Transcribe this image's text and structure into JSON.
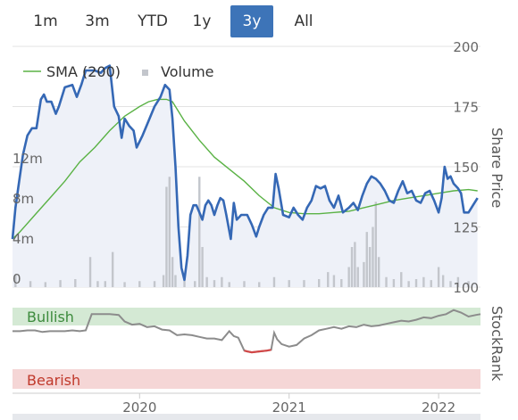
{
  "range_selector": {
    "buttons": [
      "1m",
      "3m",
      "YTD",
      "1y",
      "3y",
      "All"
    ],
    "active": "3y",
    "active_color": "#3d74b8"
  },
  "legend": {
    "sma_label": "SMA (200)",
    "volume_label": "Volume"
  },
  "labels": {
    "share_price_axis": "Share Price",
    "stockrank_axis": "StockRank",
    "bullish": "Bullish",
    "bearish": "Bearish"
  },
  "colors": {
    "price_line": "#3568b5",
    "sma_line": "#5ab245",
    "volume_bars": "#c3c6cc",
    "price_area": "#eef1f8",
    "bullish_band": "#d4e9d4",
    "bearish_band": "#f5d6d6",
    "bullish_text": "#3d8b3d",
    "bearish_text": "#c0392b",
    "stockrank_line": "#8c8c8c",
    "stockrank_bearish_segment": "#d24747"
  },
  "chart_data": {
    "type": "line",
    "share_price_axis": {
      "range": [
        100,
        200
      ],
      "ticks": [
        100,
        125,
        150,
        175,
        200
      ],
      "side": "right"
    },
    "volume_axis": {
      "ticks": [
        "0",
        "4m",
        "8m",
        "12m"
      ],
      "tick_values": [
        0,
        4,
        8,
        12
      ],
      "max": 24,
      "side": "left"
    },
    "time_axis": {
      "range": [
        2019.15,
        2022.28
      ],
      "ticks": [
        "2020",
        "2021",
        "2022"
      ],
      "tick_values": [
        2020,
        2021,
        2022
      ]
    },
    "price": [
      [
        2019.15,
        120
      ],
      [
        2019.17,
        133
      ],
      [
        2019.19,
        142
      ],
      [
        2019.22,
        155
      ],
      [
        2019.25,
        163
      ],
      [
        2019.28,
        166
      ],
      [
        2019.31,
        166
      ],
      [
        2019.34,
        178
      ],
      [
        2019.36,
        180
      ],
      [
        2019.38,
        177
      ],
      [
        2019.41,
        177
      ],
      [
        2019.44,
        172
      ],
      [
        2019.46,
        175
      ],
      [
        2019.5,
        183
      ],
      [
        2019.55,
        184
      ],
      [
        2019.58,
        179
      ],
      [
        2019.61,
        184
      ],
      [
        2019.64,
        190
      ],
      [
        2019.66,
        190
      ],
      [
        2019.7,
        190
      ],
      [
        2019.74,
        189
      ],
      [
        2019.77,
        191
      ],
      [
        2019.8,
        192
      ],
      [
        2019.83,
        175
      ],
      [
        2019.86,
        171
      ],
      [
        2019.88,
        162
      ],
      [
        2019.9,
        170
      ],
      [
        2019.93,
        167
      ],
      [
        2019.96,
        165
      ],
      [
        2019.98,
        158
      ],
      [
        2020.02,
        163
      ],
      [
        2020.06,
        169
      ],
      [
        2020.1,
        175
      ],
      [
        2020.14,
        179
      ],
      [
        2020.17,
        184
      ],
      [
        2020.2,
        182
      ],
      [
        2020.22,
        170
      ],
      [
        2020.24,
        150
      ],
      [
        2020.26,
        125
      ],
      [
        2020.28,
        108
      ],
      [
        2020.3,
        103
      ],
      [
        2020.32,
        113
      ],
      [
        2020.34,
        130
      ],
      [
        2020.36,
        134
      ],
      [
        2020.38,
        134
      ],
      [
        2020.4,
        131
      ],
      [
        2020.42,
        128
      ],
      [
        2020.44,
        134
      ],
      [
        2020.46,
        136
      ],
      [
        2020.48,
        134
      ],
      [
        2020.5,
        130
      ],
      [
        2020.52,
        134
      ],
      [
        2020.54,
        137
      ],
      [
        2020.56,
        136
      ],
      [
        2020.58,
        130
      ],
      [
        2020.61,
        120
      ],
      [
        2020.63,
        135
      ],
      [
        2020.65,
        128
      ],
      [
        2020.68,
        130
      ],
      [
        2020.72,
        130
      ],
      [
        2020.75,
        126
      ],
      [
        2020.78,
        121
      ],
      [
        2020.8,
        125
      ],
      [
        2020.83,
        130
      ],
      [
        2020.86,
        133
      ],
      [
        2020.89,
        133
      ],
      [
        2020.91,
        147
      ],
      [
        2020.93,
        141
      ],
      [
        2020.96,
        130
      ],
      [
        2021.0,
        129
      ],
      [
        2021.03,
        133
      ],
      [
        2021.06,
        130
      ],
      [
        2021.09,
        128
      ],
      [
        2021.12,
        133
      ],
      [
        2021.15,
        136
      ],
      [
        2021.18,
        142
      ],
      [
        2021.21,
        141
      ],
      [
        2021.24,
        142
      ],
      [
        2021.27,
        136
      ],
      [
        2021.3,
        133
      ],
      [
        2021.33,
        138
      ],
      [
        2021.36,
        131
      ],
      [
        2021.4,
        133
      ],
      [
        2021.43,
        135
      ],
      [
        2021.46,
        132
      ],
      [
        2021.49,
        138
      ],
      [
        2021.52,
        143
      ],
      [
        2021.55,
        146
      ],
      [
        2021.58,
        145
      ],
      [
        2021.61,
        143
      ],
      [
        2021.64,
        140
      ],
      [
        2021.67,
        136
      ],
      [
        2021.7,
        135
      ],
      [
        2021.73,
        140
      ],
      [
        2021.76,
        144
      ],
      [
        2021.79,
        139
      ],
      [
        2021.82,
        140
      ],
      [
        2021.85,
        136
      ],
      [
        2021.88,
        135
      ],
      [
        2021.91,
        139
      ],
      [
        2021.94,
        140
      ],
      [
        2021.97,
        136
      ],
      [
        2022.0,
        131
      ],
      [
        2022.02,
        137
      ],
      [
        2022.04,
        150
      ],
      [
        2022.06,
        145
      ],
      [
        2022.08,
        146
      ],
      [
        2022.1,
        143
      ],
      [
        2022.13,
        141
      ],
      [
        2022.15,
        139
      ],
      [
        2022.17,
        131
      ],
      [
        2022.2,
        131
      ],
      [
        2022.23,
        134
      ],
      [
        2022.26,
        137
      ]
    ],
    "sma_200": [
      [
        2019.15,
        120
      ],
      [
        2019.2,
        123
      ],
      [
        2019.3,
        130
      ],
      [
        2019.4,
        137
      ],
      [
        2019.5,
        144
      ],
      [
        2019.6,
        152
      ],
      [
        2019.7,
        158
      ],
      [
        2019.8,
        165
      ],
      [
        2019.9,
        171
      ],
      [
        2020.0,
        175
      ],
      [
        2020.06,
        177
      ],
      [
        2020.12,
        178
      ],
      [
        2020.18,
        178
      ],
      [
        2020.22,
        177
      ],
      [
        2020.26,
        173
      ],
      [
        2020.3,
        169
      ],
      [
        2020.4,
        161
      ],
      [
        2020.5,
        154
      ],
      [
        2020.6,
        149
      ],
      [
        2020.7,
        144
      ],
      [
        2020.8,
        138
      ],
      [
        2020.9,
        133
      ],
      [
        2021.0,
        131
      ],
      [
        2021.1,
        130.5
      ],
      [
        2021.2,
        130.5
      ],
      [
        2021.3,
        131
      ],
      [
        2021.4,
        131.5
      ],
      [
        2021.5,
        133
      ],
      [
        2021.6,
        134.5
      ],
      [
        2021.7,
        136
      ],
      [
        2021.8,
        137
      ],
      [
        2021.9,
        138
      ],
      [
        2022.0,
        139
      ],
      [
        2022.1,
        140
      ],
      [
        2022.2,
        140.5
      ],
      [
        2022.26,
        140
      ]
    ],
    "volume_m": [
      [
        2019.17,
        1.2
      ],
      [
        2019.27,
        0.6
      ],
      [
        2019.37,
        0.5
      ],
      [
        2019.47,
        0.7
      ],
      [
        2019.57,
        0.8
      ],
      [
        2019.67,
        3.0
      ],
      [
        2019.72,
        0.6
      ],
      [
        2019.77,
        0.6
      ],
      [
        2019.82,
        3.5
      ],
      [
        2019.9,
        0.5
      ],
      [
        2020.0,
        0.6
      ],
      [
        2020.1,
        0.6
      ],
      [
        2020.16,
        1.2
      ],
      [
        2020.18,
        10.0
      ],
      [
        2020.2,
        11.0
      ],
      [
        2020.22,
        3.0
      ],
      [
        2020.24,
        1.2
      ],
      [
        2020.3,
        0.8
      ],
      [
        2020.37,
        0.6
      ],
      [
        2020.4,
        11.0
      ],
      [
        2020.42,
        4.0
      ],
      [
        2020.45,
        1.0
      ],
      [
        2020.5,
        0.7
      ],
      [
        2020.55,
        1.0
      ],
      [
        2020.6,
        0.5
      ],
      [
        2020.7,
        0.6
      ],
      [
        2020.8,
        0.5
      ],
      [
        2020.9,
        1.0
      ],
      [
        2021.0,
        0.7
      ],
      [
        2021.1,
        0.7
      ],
      [
        2021.2,
        0.8
      ],
      [
        2021.26,
        1.5
      ],
      [
        2021.3,
        1.2
      ],
      [
        2021.35,
        0.8
      ],
      [
        2021.4,
        2.0
      ],
      [
        2021.42,
        4.0
      ],
      [
        2021.44,
        4.5
      ],
      [
        2021.46,
        2.0
      ],
      [
        2021.5,
        2.5
      ],
      [
        2021.52,
        5.5
      ],
      [
        2021.54,
        4.0
      ],
      [
        2021.56,
        6.0
      ],
      [
        2021.58,
        8.5
      ],
      [
        2021.6,
        3.0
      ],
      [
        2021.65,
        1.0
      ],
      [
        2021.7,
        0.8
      ],
      [
        2021.75,
        1.5
      ],
      [
        2021.8,
        0.6
      ],
      [
        2021.85,
        0.8
      ],
      [
        2021.9,
        1.0
      ],
      [
        2021.95,
        0.7
      ],
      [
        2022.0,
        2.0
      ],
      [
        2022.03,
        1.2
      ],
      [
        2022.08,
        0.6
      ],
      [
        2022.13,
        1.0
      ],
      [
        2022.2,
        0.6
      ]
    ],
    "stockrank": [
      [
        2019.15,
        71
      ],
      [
        2019.2,
        71
      ],
      [
        2019.25,
        72
      ],
      [
        2019.3,
        72
      ],
      [
        2019.35,
        70
      ],
      [
        2019.4,
        71
      ],
      [
        2019.45,
        71
      ],
      [
        2019.5,
        71
      ],
      [
        2019.55,
        72
      ],
      [
        2019.6,
        71
      ],
      [
        2019.64,
        72
      ],
      [
        2019.68,
        92
      ],
      [
        2019.72,
        92
      ],
      [
        2019.8,
        92
      ],
      [
        2019.86,
        91
      ],
      [
        2019.9,
        83
      ],
      [
        2019.95,
        79
      ],
      [
        2020.0,
        80
      ],
      [
        2020.05,
        76
      ],
      [
        2020.1,
        77
      ],
      [
        2020.15,
        73
      ],
      [
        2020.2,
        72
      ],
      [
        2020.25,
        66
      ],
      [
        2020.3,
        67
      ],
      [
        2020.35,
        66
      ],
      [
        2020.4,
        64
      ],
      [
        2020.45,
        62
      ],
      [
        2020.5,
        62
      ],
      [
        2020.55,
        60
      ],
      [
        2020.6,
        71
      ],
      [
        2020.63,
        65
      ],
      [
        2020.66,
        63
      ],
      [
        2020.7,
        47
      ],
      [
        2020.72,
        46
      ],
      [
        2020.75,
        45
      ],
      [
        2020.8,
        46
      ],
      [
        2020.85,
        47
      ],
      [
        2020.88,
        48
      ],
      [
        2020.9,
        69
      ],
      [
        2020.92,
        61
      ],
      [
        2020.95,
        55
      ],
      [
        2021.0,
        52
      ],
      [
        2021.05,
        54
      ],
      [
        2021.1,
        62
      ],
      [
        2021.15,
        66
      ],
      [
        2021.2,
        72
      ],
      [
        2021.25,
        74
      ],
      [
        2021.3,
        76
      ],
      [
        2021.35,
        74
      ],
      [
        2021.4,
        77
      ],
      [
        2021.45,
        76
      ],
      [
        2021.5,
        79
      ],
      [
        2021.55,
        77
      ],
      [
        2021.6,
        78
      ],
      [
        2021.65,
        80
      ],
      [
        2021.7,
        82
      ],
      [
        2021.75,
        84
      ],
      [
        2021.8,
        83
      ],
      [
        2021.85,
        85
      ],
      [
        2021.9,
        88
      ],
      [
        2021.95,
        87
      ],
      [
        2022.0,
        90
      ],
      [
        2022.05,
        92
      ],
      [
        2022.1,
        97
      ],
      [
        2022.15,
        94
      ],
      [
        2022.2,
        89
      ],
      [
        2022.25,
        91
      ],
      [
        2022.28,
        92
      ]
    ],
    "stockrank_bearish_range": [
      2020.67,
      2020.88
    ]
  }
}
